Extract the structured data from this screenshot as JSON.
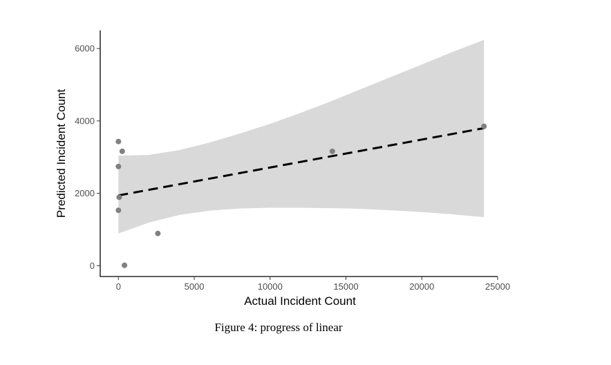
{
  "caption": "Figure 4: progress of linear",
  "chart_data": {
    "type": "scatter",
    "xlabel": "Actual Incident Count",
    "ylabel": "Predicted Incident Count",
    "xlim": [
      -1200,
      25000
    ],
    "ylim": [
      -300,
      6500
    ],
    "x_ticks": [
      0,
      5000,
      10000,
      15000,
      20000,
      25000
    ],
    "x_tick_labels": [
      "0",
      "5000",
      "10000",
      "15000",
      "20000",
      "25000"
    ],
    "y_ticks": [
      0,
      2000,
      4000,
      6000
    ],
    "y_tick_labels": [
      "0",
      "2000",
      "4000",
      "6000"
    ],
    "grid": false,
    "points": [
      {
        "x": 0,
        "y": 3430
      },
      {
        "x": 250,
        "y": 3160
      },
      {
        "x": 0,
        "y": 2740
      },
      {
        "x": 50,
        "y": 1890
      },
      {
        "x": 0,
        "y": 1530
      },
      {
        "x": 400,
        "y": 10
      },
      {
        "x": 2600,
        "y": 890
      },
      {
        "x": 14100,
        "y": 3160
      },
      {
        "x": 24100,
        "y": 3850
      }
    ],
    "fit_line": {
      "style": "dashed",
      "color": "#000000",
      "x": [
        0,
        24100
      ],
      "y": [
        1940,
        3800
      ]
    },
    "confidence_band": {
      "color": "#d9d9d9",
      "x": [
        0,
        2000,
        4000,
        6000,
        8000,
        10000,
        12000,
        14000,
        16000,
        18000,
        20000,
        22000,
        24100
      ],
      "lower": [
        890,
        1190,
        1400,
        1520,
        1580,
        1600,
        1600,
        1590,
        1570,
        1530,
        1480,
        1420,
        1340
      ],
      "upper": [
        3040,
        3060,
        3190,
        3400,
        3650,
        3920,
        4220,
        4540,
        4880,
        5220,
        5560,
        5900,
        6240
      ]
    },
    "colors": {
      "points": "#808080",
      "axis": "#000000"
    }
  }
}
